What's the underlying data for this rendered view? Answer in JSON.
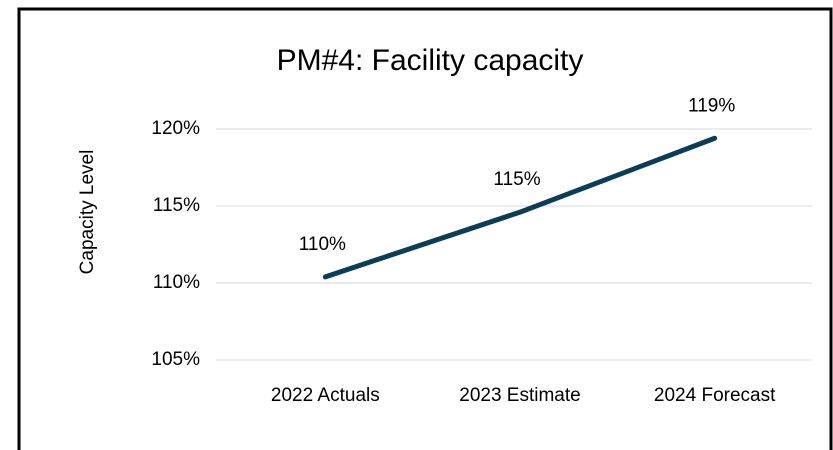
{
  "chart_data": {
    "type": "line",
    "title": "PM#4: Facility capacity",
    "y_label": "Capacity  Level",
    "categories": [
      "2022 Actuals",
      "2023 Estimate",
      "2024 Forecast"
    ],
    "series": [
      {
        "name": "Capacity Level",
        "color": "#0d3d56",
        "values": [
          110.4,
          114.6,
          119.4
        ],
        "value_labels": [
          "110%",
          "115%",
          "119%"
        ]
      }
    ],
    "ylim": [
      105,
      120
    ],
    "yticks": [
      {
        "value": 105,
        "label": "105%"
      },
      {
        "value": 110,
        "label": "110%"
      },
      {
        "value": 115,
        "label": "115%"
      },
      {
        "value": 120,
        "label": "120%"
      }
    ],
    "grid": true
  }
}
